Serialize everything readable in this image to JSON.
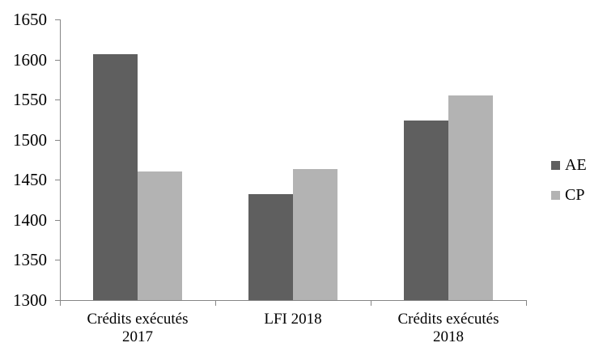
{
  "chart_data": {
    "type": "bar",
    "title": "",
    "xlabel": "",
    "ylabel": "",
    "categories": [
      [
        "Crédits exécutés",
        "2017"
      ],
      [
        "LFI 2018"
      ],
      [
        "Crédits exécutés",
        "2018"
      ]
    ],
    "series": [
      {
        "name": "AE",
        "color": "#5f5f5f",
        "values": [
          1607,
          1432,
          1524
        ]
      },
      {
        "name": "CP",
        "color": "#b3b3b3",
        "values": [
          1460,
          1463,
          1555
        ]
      }
    ],
    "ylim": [
      1300,
      1650
    ],
    "ytick_step": 50,
    "ytick_labels": [
      "1300",
      "1350",
      "1400",
      "1450",
      "1500",
      "1550",
      "1600",
      "1650"
    ],
    "grid": false,
    "legend_position": "right",
    "axis_color": "#868686",
    "text_color": "#000000",
    "background": "#ffffff"
  }
}
